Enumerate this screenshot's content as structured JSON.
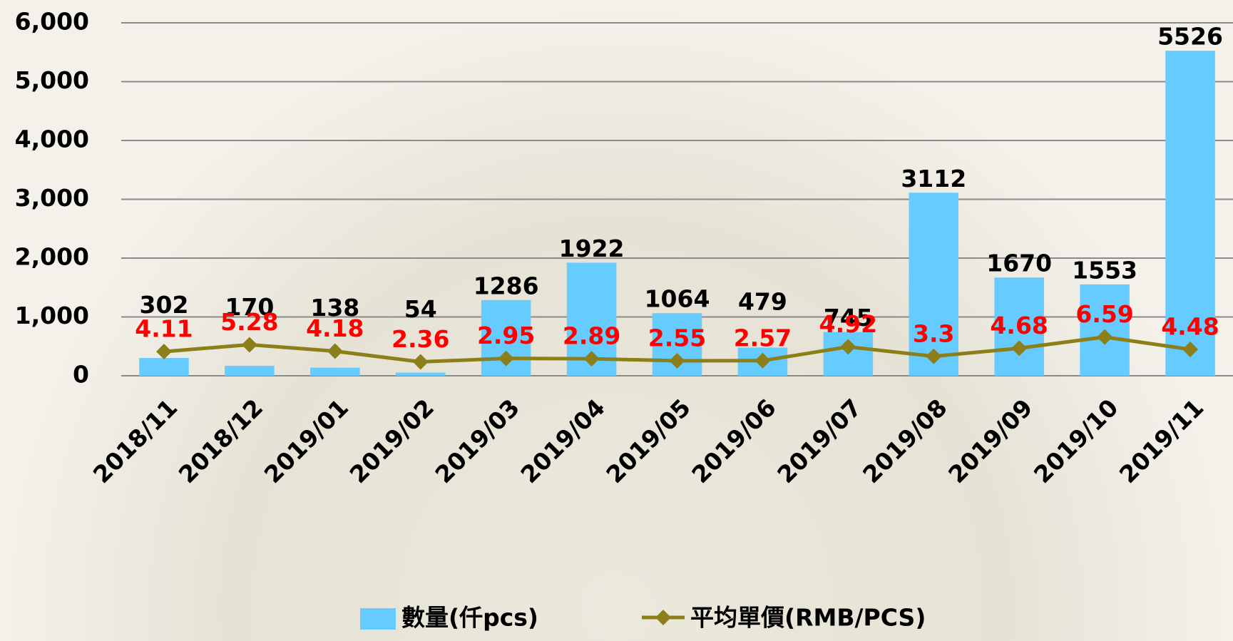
{
  "chart_data": {
    "type": "bar_line",
    "categories": [
      "2018/11",
      "2018/12",
      "2019/01",
      "2019/02",
      "2019/03",
      "2019/04",
      "2019/05",
      "2019/06",
      "2019/07",
      "2019/08",
      "2019/09",
      "2019/10",
      "2019/11"
    ],
    "series": [
      {
        "name": "數量(仟pcs)",
        "type": "bar",
        "color": "#66ccff",
        "label_color": "#000000",
        "values": [
          302,
          170,
          138,
          54,
          1286,
          1922,
          1064,
          479,
          745,
          3112,
          1670,
          1553,
          5526
        ]
      },
      {
        "name": "平均單價(RMB/PCS)",
        "type": "line",
        "axis": "y2",
        "color": "#8c7f1a",
        "label_color": "#ff0000",
        "values": [
          4.11,
          5.28,
          4.18,
          2.36,
          2.95,
          2.89,
          2.55,
          2.57,
          4.92,
          3.3,
          4.68,
          6.59,
          4.48
        ]
      }
    ],
    "ylim": [
      0,
      6000
    ],
    "yticks": [
      {
        "value": 0,
        "label": "0"
      },
      {
        "value": 1000,
        "label": "1,000"
      },
      {
        "value": 2000,
        "label": "2,000"
      },
      {
        "value": 3000,
        "label": "3,000"
      },
      {
        "value": 4000,
        "label": "4,000"
      },
      {
        "value": 5000,
        "label": "5,000"
      },
      {
        "value": 6000,
        "label": "6,000"
      }
    ],
    "y2lim": [
      0,
      60
    ],
    "grid": true,
    "legend": "bottom"
  }
}
